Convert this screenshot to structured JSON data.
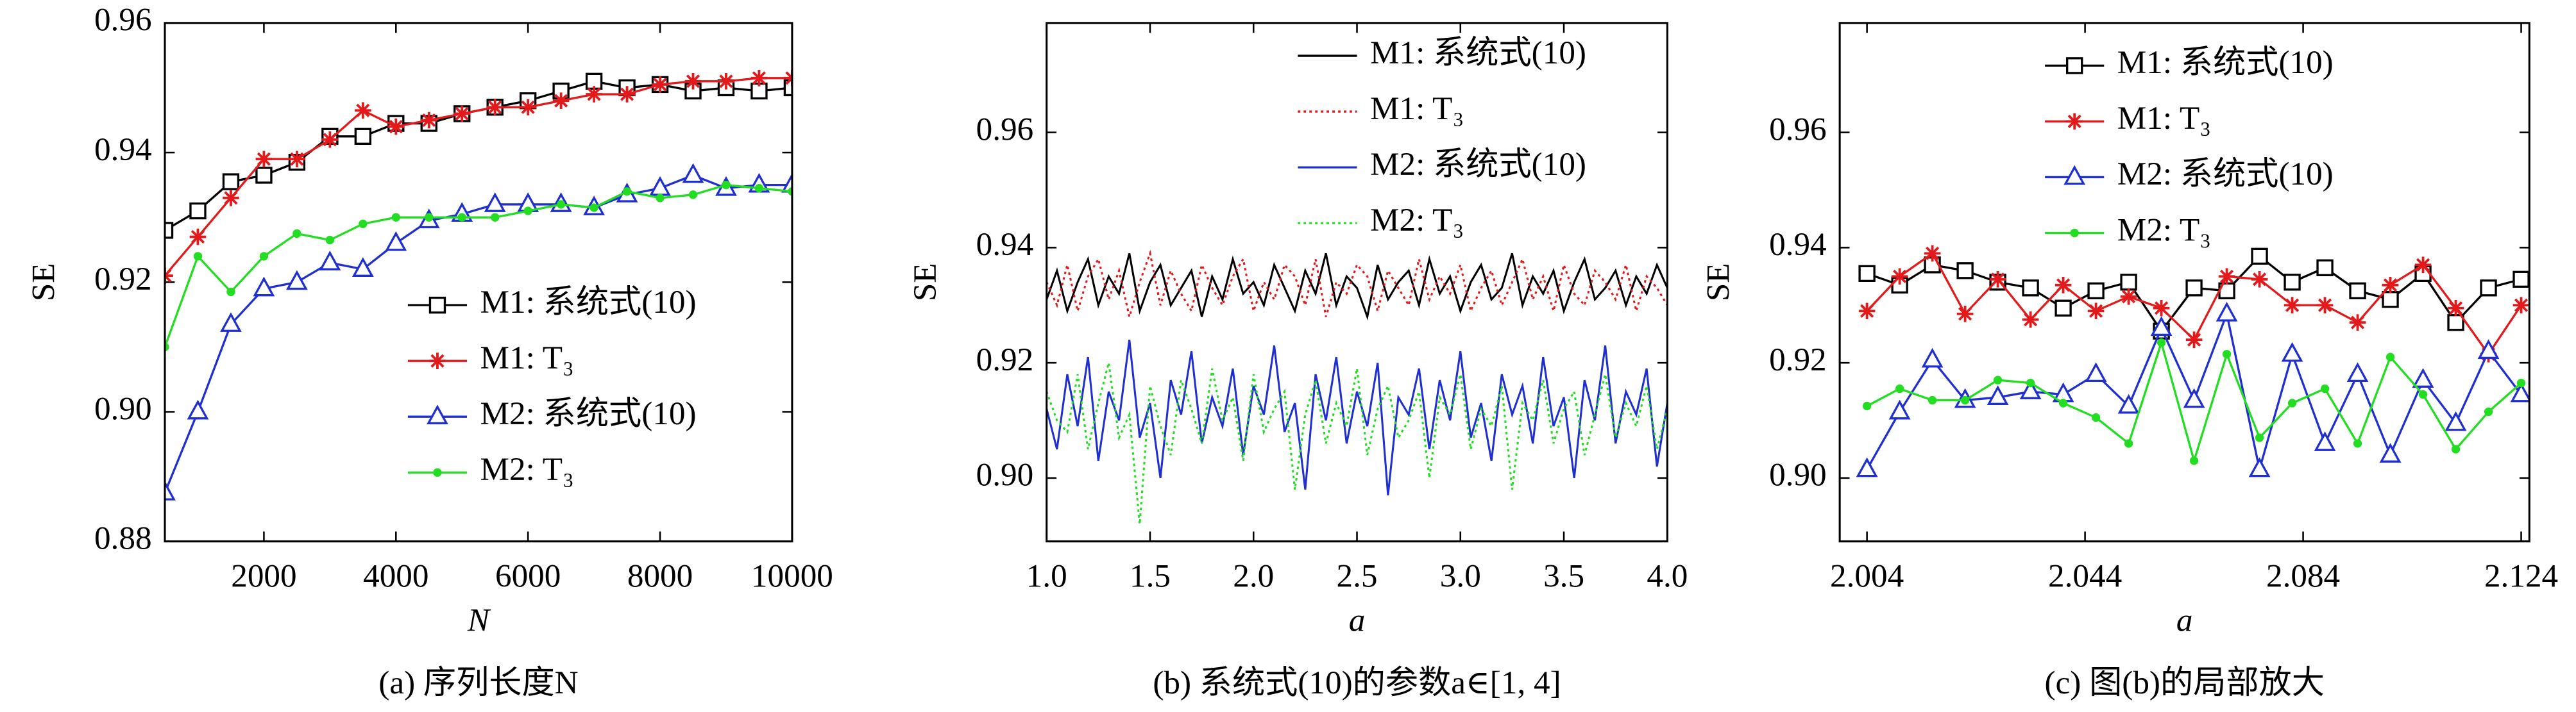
{
  "chart_data": [
    {
      "type": "line",
      "caption": "(a) 序列长度N",
      "xlabel": "N",
      "ylabel": "SE",
      "x": [
        500,
        1000,
        1500,
        2000,
        2500,
        3000,
        3500,
        4000,
        4500,
        5000,
        5500,
        6000,
        6500,
        7000,
        7500,
        8000,
        8500,
        9000,
        9500,
        10000
      ],
      "xlim": [
        500,
        10000
      ],
      "xticks": [
        2000,
        4000,
        6000,
        8000,
        10000
      ],
      "ylim": [
        0.88,
        0.96
      ],
      "yticks": [
        0.88,
        {
          "value": 0.9,
          "label": "0.90"
        },
        0.92,
        0.94,
        0.96
      ],
      "legend": "lower right",
      "series": [
        {
          "name": "M1: 系统式(10)",
          "color": "#000000",
          "marker": "square",
          "linestyle": "solid",
          "values": [
            0.928,
            0.931,
            0.9355,
            0.9365,
            0.9385,
            0.9425,
            0.9425,
            0.9445,
            0.9445,
            0.946,
            0.947,
            0.948,
            0.9495,
            0.951,
            0.95,
            0.9505,
            0.9495,
            0.95,
            0.9495,
            0.95
          ]
        },
        {
          "name": "M1: T₃",
          "color": "#e31a1c",
          "marker": "asterisk",
          "linestyle": "solid",
          "values": [
            0.921,
            0.927,
            0.933,
            0.939,
            0.939,
            0.942,
            0.9465,
            0.944,
            0.945,
            0.946,
            0.947,
            0.947,
            0.948,
            0.949,
            0.949,
            0.9505,
            0.951,
            0.951,
            0.9515,
            0.9515
          ]
        },
        {
          "name": "M2: 系统式(10)",
          "color": "#1f2fd0",
          "marker": "triangle",
          "linestyle": "solid",
          "values": [
            0.8875,
            0.9,
            0.9135,
            0.919,
            0.92,
            0.923,
            0.922,
            0.926,
            0.9295,
            0.9305,
            0.932,
            0.932,
            0.932,
            0.9315,
            0.9335,
            0.9345,
            0.9365,
            0.9345,
            0.935,
            0.935
          ]
        },
        {
          "name": "M2: T₃",
          "color": "#22dd22",
          "marker": "circle",
          "linestyle": "solid",
          "values": [
            0.91,
            0.924,
            0.9185,
            0.924,
            0.9275,
            0.9265,
            0.929,
            0.93,
            0.93,
            0.93,
            0.93,
            0.931,
            0.932,
            0.9315,
            0.934,
            0.933,
            0.9335,
            0.935,
            0.9345,
            0.934
          ]
        }
      ]
    },
    {
      "type": "line",
      "caption": "(b) 系统式(10)的参数a∈[1, 4]",
      "xlabel": "a",
      "ylabel": "SE",
      "x": [
        1,
        1.05,
        1.1,
        1.15,
        1.2,
        1.25,
        1.3,
        1.35,
        1.4,
        1.45,
        1.5,
        1.55,
        1.6,
        1.65,
        1.7,
        1.75,
        1.8,
        1.85,
        1.9,
        1.95,
        2,
        2.05,
        2.1,
        2.15,
        2.2,
        2.25,
        2.3,
        2.35,
        2.4,
        2.45,
        2.5,
        2.55,
        2.6,
        2.65,
        2.7,
        2.75,
        2.8,
        2.85,
        2.9,
        2.95,
        3,
        3.05,
        3.1,
        3.15,
        3.2,
        3.25,
        3.3,
        3.35,
        3.4,
        3.45,
        3.5,
        3.55,
        3.6,
        3.65,
        3.7,
        3.75,
        3.8,
        3.85,
        3.9,
        3.95,
        4
      ],
      "xlim": [
        1,
        4
      ],
      "xticks": [
        {
          "value": 1,
          "label": "1.0"
        },
        1.5,
        {
          "value": 2,
          "label": "2.0"
        },
        2.5,
        {
          "value": 3,
          "label": "3.0"
        },
        3.5,
        {
          "value": 4,
          "label": "4.0"
        }
      ],
      "ylim": [
        0.889,
        0.979
      ],
      "yticks": [
        {
          "value": 0.9,
          "label": "0.90"
        },
        0.92,
        0.94,
        0.96
      ],
      "legend": "upper right",
      "series": [
        {
          "name": "M1: 系统式(10)",
          "color": "#000000",
          "marker": "none",
          "linestyle": "solid",
          "values": [
            0.931,
            0.936,
            0.929,
            0.934,
            0.938,
            0.93,
            0.935,
            0.932,
            0.939,
            0.929,
            0.934,
            0.937,
            0.93,
            0.933,
            0.936,
            0.928,
            0.935,
            0.931,
            0.938,
            0.932,
            0.934,
            0.93,
            0.937,
            0.933,
            0.929,
            0.936,
            0.932,
            0.939,
            0.93,
            0.935,
            0.933,
            0.928,
            0.937,
            0.931,
            0.934,
            0.936,
            0.93,
            0.938,
            0.932,
            0.935,
            0.929,
            0.934,
            0.937,
            0.931,
            0.933,
            0.939,
            0.93,
            0.935,
            0.932,
            0.936,
            0.929,
            0.934,
            0.938,
            0.931,
            0.933,
            0.936,
            0.93,
            0.935,
            0.932,
            0.937,
            0.933
          ]
        },
        {
          "name": "M1: T₃",
          "color": "#e31a1c",
          "marker": "none",
          "linestyle": "dotted",
          "values": [
            0.934,
            0.93,
            0.937,
            0.929,
            0.935,
            0.938,
            0.931,
            0.936,
            0.928,
            0.934,
            0.939,
            0.93,
            0.936,
            0.932,
            0.929,
            0.937,
            0.933,
            0.93,
            0.935,
            0.938,
            0.929,
            0.934,
            0.931,
            0.937,
            0.935,
            0.93,
            0.938,
            0.928,
            0.934,
            0.932,
            0.937,
            0.935,
            0.929,
            0.936,
            0.933,
            0.93,
            0.938,
            0.931,
            0.935,
            0.932,
            0.937,
            0.929,
            0.933,
            0.936,
            0.93,
            0.934,
            0.938,
            0.931,
            0.935,
            0.929,
            0.937,
            0.932,
            0.93,
            0.936,
            0.934,
            0.931,
            0.937,
            0.929,
            0.935,
            0.933,
            0.93
          ]
        },
        {
          "name": "M2: 系统式(10)",
          "color": "#1f2fd0",
          "marker": "none",
          "linestyle": "solid",
          "values": [
            0.912,
            0.905,
            0.918,
            0.909,
            0.921,
            0.903,
            0.915,
            0.91,
            0.924,
            0.907,
            0.913,
            0.9,
            0.917,
            0.911,
            0.922,
            0.906,
            0.914,
            0.909,
            0.919,
            0.904,
            0.916,
            0.911,
            0.923,
            0.908,
            0.913,
            0.898,
            0.918,
            0.91,
            0.921,
            0.906,
            0.915,
            0.909,
            0.92,
            0.897,
            0.914,
            0.911,
            0.919,
            0.905,
            0.917,
            0.91,
            0.922,
            0.907,
            0.913,
            0.903,
            0.918,
            0.911,
            0.916,
            0.906,
            0.921,
            0.909,
            0.914,
            0.9,
            0.917,
            0.91,
            0.923,
            0.906,
            0.915,
            0.911,
            0.919,
            0.902,
            0.913
          ]
        },
        {
          "name": "M2: T₃",
          "color": "#22dd22",
          "marker": "none",
          "linestyle": "dotted",
          "values": [
            0.915,
            0.91,
            0.908,
            0.918,
            0.905,
            0.913,
            0.92,
            0.907,
            0.911,
            0.892,
            0.916,
            0.909,
            0.904,
            0.917,
            0.912,
            0.906,
            0.919,
            0.91,
            0.914,
            0.903,
            0.918,
            0.908,
            0.912,
            0.915,
            0.898,
            0.911,
            0.917,
            0.906,
            0.913,
            0.909,
            0.919,
            0.904,
            0.912,
            0.916,
            0.907,
            0.91,
            0.915,
            0.9,
            0.914,
            0.911,
            0.918,
            0.905,
            0.912,
            0.909,
            0.916,
            0.898,
            0.913,
            0.91,
            0.917,
            0.906,
            0.912,
            0.915,
            0.904,
            0.911,
            0.918,
            0.907,
            0.913,
            0.909,
            0.916,
            0.905,
            0.912
          ]
        }
      ]
    },
    {
      "type": "line",
      "caption": "(c) 图(b)的局部放大",
      "xlabel": "a",
      "ylabel": "SE",
      "x": [
        2.004,
        2.01,
        2.016,
        2.022,
        2.028,
        2.034,
        2.04,
        2.046,
        2.052,
        2.058,
        2.064,
        2.07,
        2.076,
        2.082,
        2.088,
        2.094,
        2.1,
        2.106,
        2.112,
        2.118,
        2.124
      ],
      "xlim": [
        1.999,
        2.1255
      ],
      "xticks": [
        2.004,
        2.044,
        2.084,
        2.124
      ],
      "ylim": [
        0.889,
        0.979
      ],
      "yticks": [
        {
          "value": 0.9,
          "label": "0.90"
        },
        0.92,
        0.94,
        0.96
      ],
      "legend": "upper center",
      "series": [
        {
          "name": "M1: 系统式(10)",
          "color": "#000000",
          "marker": "square",
          "linestyle": "solid",
          "values": [
            0.9355,
            0.9335,
            0.937,
            0.936,
            0.934,
            0.933,
            0.9295,
            0.9325,
            0.934,
            0.9255,
            0.933,
            0.9325,
            0.9385,
            0.934,
            0.9365,
            0.9325,
            0.931,
            0.9355,
            0.927,
            0.933,
            0.9345
          ]
        },
        {
          "name": "M1: T₃",
          "color": "#e31a1c",
          "marker": "asterisk",
          "linestyle": "solid",
          "values": [
            0.929,
            0.935,
            0.939,
            0.9285,
            0.9345,
            0.9275,
            0.9335,
            0.929,
            0.9315,
            0.9295,
            0.924,
            0.935,
            0.9345,
            0.93,
            0.93,
            0.927,
            0.9335,
            0.937,
            0.9295,
            0.9215,
            0.93
          ]
        },
        {
          "name": "M2: 系统式(10)",
          "color": "#1f2fd0",
          "marker": "triangle",
          "linestyle": "solid",
          "values": [
            0.9015,
            0.9115,
            0.9205,
            0.9135,
            0.914,
            0.915,
            0.9145,
            0.918,
            0.9125,
            0.926,
            0.9135,
            0.9285,
            0.9015,
            0.9215,
            0.906,
            0.918,
            0.904,
            0.917,
            0.9095,
            0.922,
            0.9145
          ]
        },
        {
          "name": "M2: T₃",
          "color": "#22dd22",
          "marker": "circle",
          "linestyle": "solid",
          "values": [
            0.9125,
            0.9155,
            0.9135,
            0.9135,
            0.917,
            0.9165,
            0.913,
            0.9105,
            0.906,
            0.9235,
            0.903,
            0.9215,
            0.907,
            0.913,
            0.9155,
            0.906,
            0.921,
            0.9145,
            0.905,
            0.9115,
            0.9165
          ]
        }
      ]
    }
  ]
}
